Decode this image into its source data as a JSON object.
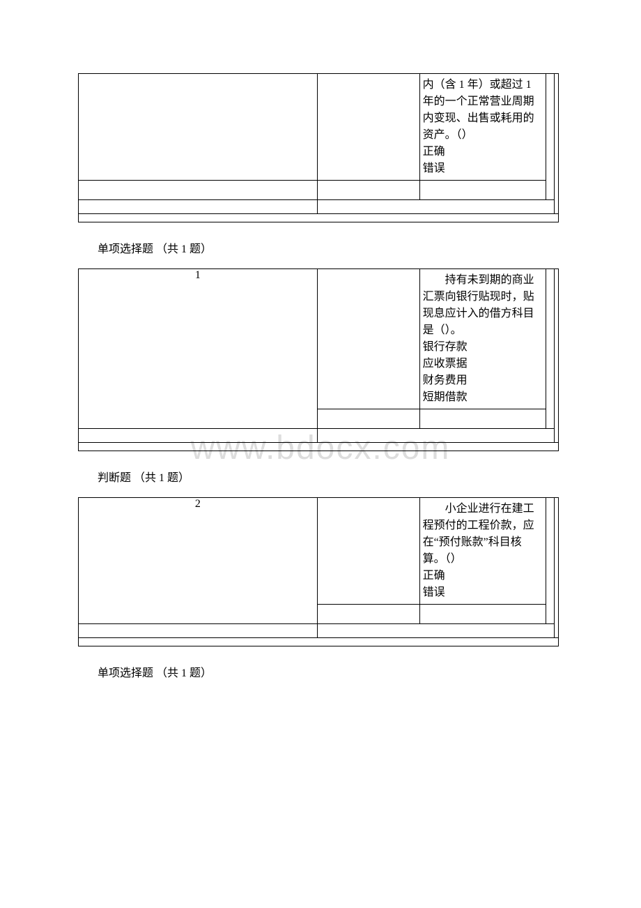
{
  "watermark": "www.bdocx.com",
  "sections": [
    {
      "number": "",
      "question_continuation": "内（含 1 年）或超过 1 年的一个正常营业周期内变现、出售或耗用的资产。（）",
      "options": [
        "正确",
        "错误"
      ]
    },
    {
      "title": "单项选择题 （共 1 题）",
      "number": "1",
      "question": "持有未到期的商业汇票向银行贴现时，贴现息应计入的借方科目是（）。",
      "options": [
        "银行存款",
        "应收票据",
        "财务费用",
        "短期借款"
      ]
    },
    {
      "title": "判断题 （共 1 题）",
      "number": "2",
      "question": "小企业进行在建工程预付的工程价款，应在“预付账款”科目核算。（）",
      "options": [
        "正确",
        "错误"
      ]
    },
    {
      "title": "单项选择题 （共 1 题）"
    }
  ],
  "colors": {
    "text": "#000000",
    "border": "#000000",
    "background": "#ffffff",
    "watermark": "#dddddd"
  }
}
